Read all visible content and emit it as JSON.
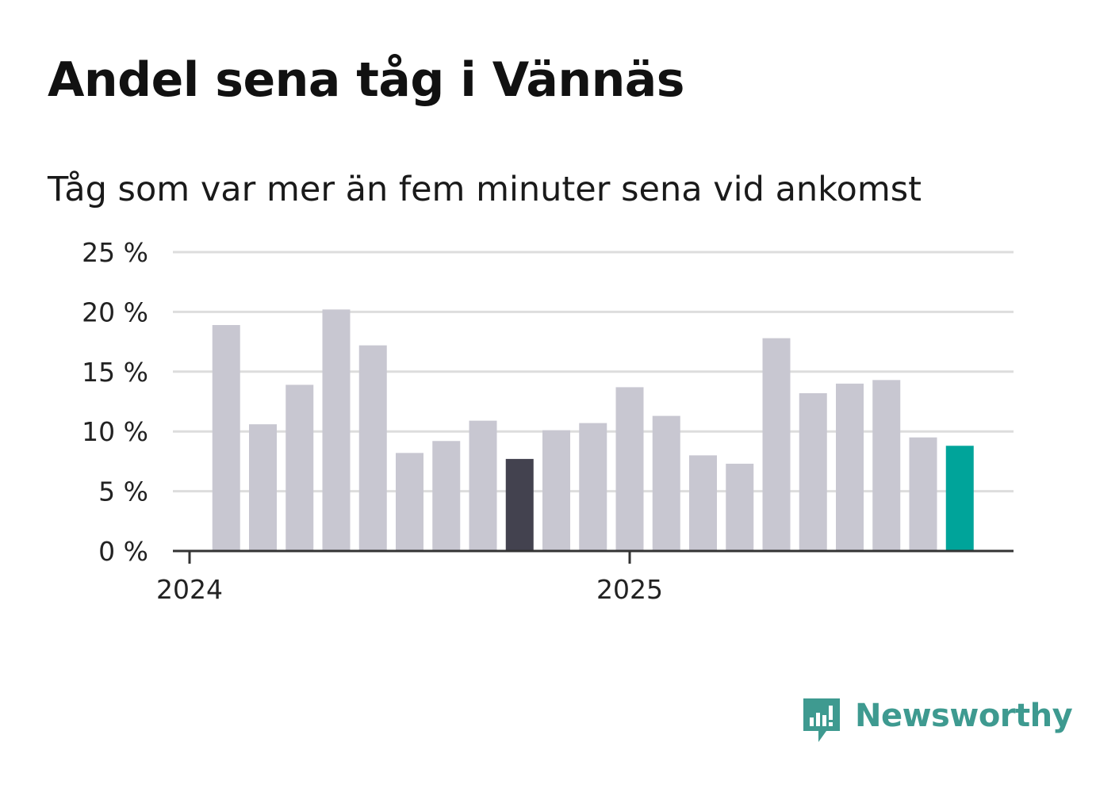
{
  "title": "Andel sena tåg i Vännäs",
  "subtitle": "Tåg som var mer än fem minuter sena vid ankomst",
  "logo": {
    "text": "Newsworthy",
    "icon": "bar-chart-speech-bubble-icon",
    "color": "#3e9a90"
  },
  "chart_data": {
    "type": "bar",
    "y_unit": "%",
    "ylim": [
      0,
      25
    ],
    "y_ticks": [
      {
        "value": 0,
        "label": "0 %"
      },
      {
        "value": 5,
        "label": "5 %"
      },
      {
        "value": 10,
        "label": "10 %"
      },
      {
        "value": 15,
        "label": "15 %"
      },
      {
        "value": 20,
        "label": "20 %"
      },
      {
        "value": 25,
        "label": "25 %"
      }
    ],
    "x_ticks": [
      {
        "label": "2024",
        "month": "2024-01"
      },
      {
        "label": "2025",
        "month": "2025-01"
      }
    ],
    "categories": [
      "2024-02",
      "2024-03",
      "2024-04",
      "2024-05",
      "2024-06",
      "2024-07",
      "2024-08",
      "2024-09",
      "2024-10",
      "2024-11",
      "2024-12",
      "2025-01",
      "2025-02",
      "2025-03",
      "2025-04",
      "2025-05",
      "2025-06",
      "2025-07",
      "2025-08",
      "2025-09",
      "2025-10"
    ],
    "values": [
      18.9,
      10.6,
      13.9,
      20.2,
      17.2,
      8.2,
      9.2,
      10.9,
      7.7,
      10.1,
      10.7,
      13.7,
      11.3,
      8.0,
      7.3,
      17.8,
      13.2,
      14.0,
      14.3,
      9.5,
      8.8
    ],
    "colors": {
      "default": "#c8c7d1",
      "highlight_previous_year": "#43424f",
      "highlight_latest": "#00a49a",
      "grid": "#dddddd",
      "axis": "#333333"
    },
    "highlight": {
      "2024-10": "highlight_previous_year",
      "2025-10": "highlight_latest"
    },
    "grid": true,
    "legend": false
  }
}
